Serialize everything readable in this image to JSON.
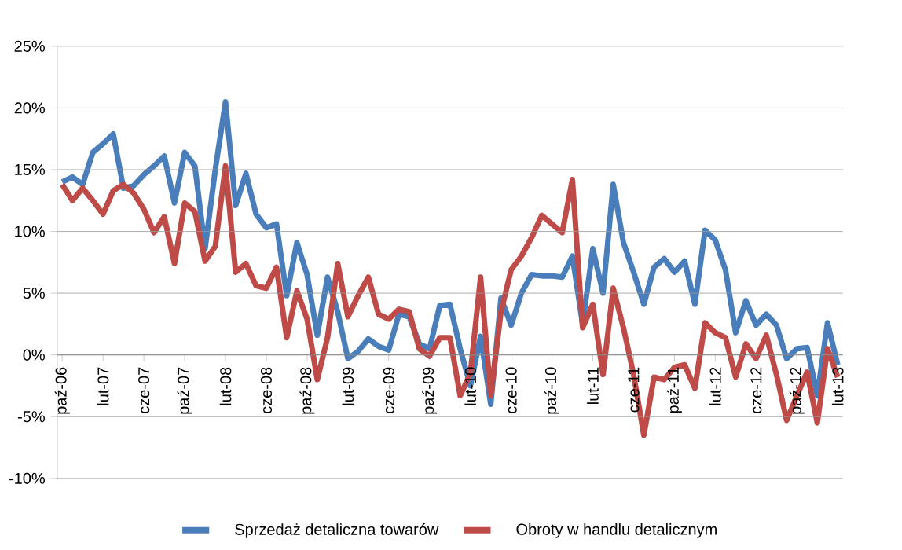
{
  "chart_data": {
    "type": "line",
    "categories": [
      "paź-06",
      null,
      null,
      null,
      "lut-07",
      null,
      null,
      null,
      "cze-07",
      null,
      null,
      null,
      "paź-07",
      null,
      null,
      null,
      "lut-08",
      null,
      null,
      null,
      "cze-08",
      null,
      null,
      null,
      "paź-08",
      null,
      null,
      null,
      "lut-09",
      null,
      null,
      null,
      "cze-09",
      null,
      null,
      null,
      "paź-09",
      null,
      null,
      null,
      "lut-10",
      null,
      null,
      null,
      "cze-10",
      null,
      null,
      null,
      "paź-10",
      null,
      null,
      null,
      "lut-11",
      null,
      null,
      null,
      "cze-11",
      null,
      null,
      null,
      "paź-11",
      null,
      null,
      null,
      "lut-12",
      null,
      null,
      null,
      "cze-12",
      null,
      null,
      null,
      "paź-12",
      null,
      null,
      null,
      "lut-13"
    ],
    "series": [
      {
        "name": "Sprzedaż detaliczna towarów",
        "color": "#4a7ebb",
        "values": [
          14.0,
          14.4,
          13.8,
          16.4,
          17.1,
          17.9,
          13.5,
          13.7,
          14.6,
          15.3,
          16.1,
          12.3,
          16.4,
          15.3,
          8.6,
          15.0,
          20.5,
          12.1,
          14.7,
          11.4,
          10.3,
          10.6,
          4.8,
          9.1,
          6.5,
          1.6,
          6.3,
          3.5,
          -0.3,
          0.3,
          1.3,
          0.7,
          0.4,
          3.3,
          3.1,
          0.9,
          0.5,
          4.0,
          4.1,
          0.5,
          -2.5,
          1.5,
          -4.0,
          4.6,
          2.4,
          5.0,
          6.5,
          6.4,
          6.4,
          6.3,
          8.0,
          2.5,
          8.6,
          5.0,
          13.8,
          9.1,
          6.7,
          4.1,
          7.1,
          7.8,
          6.7,
          7.6,
          4.1,
          10.1,
          9.3,
          6.9,
          1.8,
          4.4,
          2.4,
          3.3,
          2.4,
          -0.3,
          0.5,
          0.6,
          -3.3,
          2.6,
          -0.8
        ]
      },
      {
        "name": "Obroty w handlu detalicznym",
        "color": "#be4b48",
        "values": [
          13.8,
          12.5,
          13.5,
          12.5,
          11.4,
          13.3,
          13.8,
          13.1,
          11.8,
          9.9,
          11.2,
          7.4,
          12.3,
          11.6,
          7.6,
          8.8,
          15.3,
          6.7,
          7.4,
          5.6,
          5.4,
          7.1,
          1.4,
          5.2,
          2.9,
          -2.0,
          1.4,
          7.4,
          3.1,
          4.8,
          6.3,
          3.3,
          2.9,
          3.7,
          3.5,
          0.5,
          -0.1,
          1.4,
          1.4,
          -3.3,
          -1.5,
          6.3,
          -3.3,
          3.5,
          6.9,
          8.0,
          9.5,
          11.3,
          10.6,
          9.9,
          14.2,
          2.2,
          4.1,
          -1.6,
          5.4,
          2.2,
          -1.6,
          -6.5,
          -1.8,
          -2.0,
          -1.0,
          -0.8,
          -2.7,
          2.6,
          1.8,
          1.4,
          -1.8,
          0.9,
          -0.3,
          1.6,
          -1.6,
          -5.3,
          -3.3,
          -1.4,
          -5.5,
          0.5,
          -1.8
        ]
      }
    ],
    "ylim": [
      -10,
      25
    ],
    "yticks": [
      {
        "value": -10,
        "label": "-10%"
      },
      {
        "value": -5,
        "label": "-5%"
      },
      {
        "value": 0,
        "label": "0%"
      },
      {
        "value": 5,
        "label": "5%"
      },
      {
        "value": 10,
        "label": "10%"
      },
      {
        "value": 15,
        "label": "15%"
      },
      {
        "value": 20,
        "label": "20%"
      },
      {
        "value": 25,
        "label": "25%"
      }
    ],
    "grid": "y",
    "legend": "bottom",
    "marker": "none",
    "line_style": "solid"
  }
}
